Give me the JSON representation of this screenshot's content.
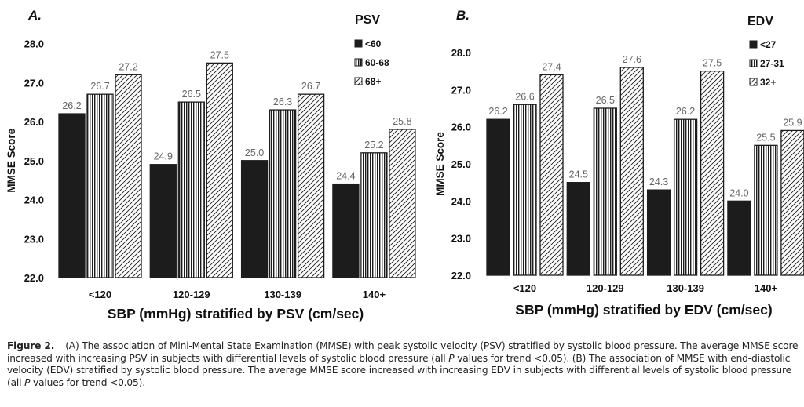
{
  "chart_data": [
    {
      "panel_label": "A.",
      "type": "bar",
      "categories": [
        "<120",
        "120-129",
        "130-139",
        "140+"
      ],
      "series": [
        {
          "name": "<60",
          "values": [
            26.2,
            24.9,
            25.0,
            24.4
          ],
          "pattern": "solid"
        },
        {
          "name": "60-68",
          "values": [
            26.7,
            26.5,
            26.3,
            25.2
          ],
          "pattern": "vertical-stripes"
        },
        {
          "name": "68+",
          "values": [
            27.2,
            27.5,
            26.7,
            25.8
          ],
          "pattern": "diagonal-hatch"
        }
      ],
      "data_labels": [
        [
          "26.2",
          "24.9",
          "25.0",
          "24.4"
        ],
        [
          "26.7",
          "26.5",
          "26.3",
          "25.2"
        ],
        [
          "27.2",
          "27.5",
          "26.7",
          "25.8"
        ]
      ],
      "legend_title": "PSV",
      "legend_position": "top-right",
      "xlabel": "SBP (mmHg) stratified by PSV (cm/sec)",
      "ylabel": "MMSE Score",
      "ylim": [
        22.0,
        28.0
      ],
      "yticks": [
        "22.0",
        "23.0",
        "24.0",
        "25.0",
        "26.0",
        "27.0",
        "28.0"
      ],
      "grid": false
    },
    {
      "panel_label": "B.",
      "type": "bar",
      "categories": [
        "<120",
        "120-129",
        "130-139",
        "140+"
      ],
      "series": [
        {
          "name": "<27",
          "values": [
            26.2,
            24.5,
            24.3,
            24.0
          ],
          "pattern": "solid"
        },
        {
          "name": "27-31",
          "values": [
            26.6,
            26.5,
            26.2,
            25.5
          ],
          "pattern": "vertical-stripes"
        },
        {
          "name": "32+",
          "values": [
            27.4,
            27.6,
            27.5,
            25.9
          ],
          "pattern": "diagonal-hatch"
        }
      ],
      "data_labels": [
        [
          "26.2",
          "24.5",
          "24.3",
          "24.0"
        ],
        [
          "26.6",
          "26.5",
          "26.2",
          "25.5"
        ],
        [
          "27.4",
          "27.6",
          "27.5",
          "25.9"
        ]
      ],
      "legend_title": "EDV",
      "legend_position": "top-right",
      "xlabel": "SBP (mmHg) stratified by EDV (cm/sec)",
      "ylabel": "MMSE Score",
      "ylim": [
        22.0,
        28.0
      ],
      "yticks": [
        "22.0",
        "23.0",
        "24.0",
        "25.0",
        "26.0",
        "27.0",
        "28.0"
      ],
      "grid": false
    }
  ],
  "caption": {
    "label": "Figure 2.",
    "part1": "(A) The association of Mini-Mental State Examination (MMSE) with peak systolic velocity (PSV) stratified by systolic blood pressure. The average MMSE score increased with increasing PSV in subjects with differential levels of systolic blood pressure (all ",
    "p1": "P",
    "part2": " values for trend <0.05). (B) The association of MMSE with end-diastolic velocity (EDV) stratified by systolic blood pressure. The average MMSE score increased with increasing EDV in subjects with differential levels of systolic blood pressure (all ",
    "p2": "P",
    "part3": " values for trend <0.05)."
  },
  "colors": {
    "bar_fill": "#1c1c1c",
    "bar_stroke": "#1c1c1c",
    "text": "#111111",
    "value_label": "#666666"
  }
}
